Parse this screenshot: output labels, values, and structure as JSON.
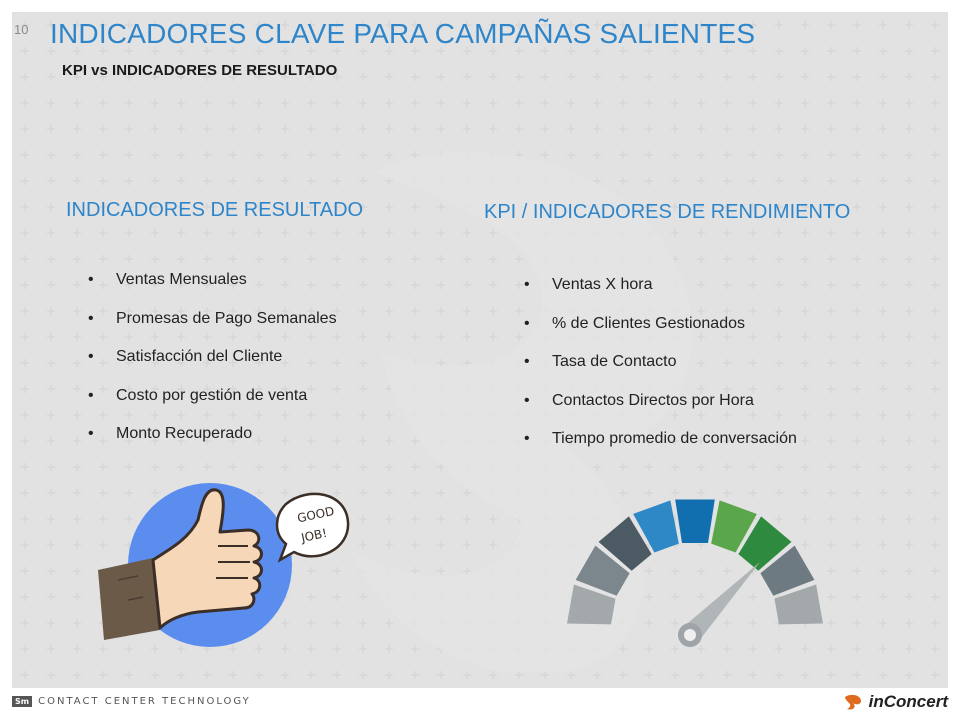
{
  "slide": {
    "page_number": "10",
    "title": "INDICADORES CLAVE PARA CAMPAÑAS SALIENTES",
    "subtitle": "KPI vs INDICADORES DE RESULTADO"
  },
  "left_column": {
    "heading": "INDICADORES DE RESULTADO",
    "items": [
      "Ventas Mensuales",
      "Promesas de Pago Semanales",
      "Satisfacción del Cliente",
      "Costo por gestión de venta",
      "Monto Recuperado"
    ]
  },
  "right_column": {
    "heading": "KPI / INDICADORES DE RENDIMIENTO",
    "items": [
      "Ventas X hora",
      "% de Clientes Gestionados",
      "Tasa de Contacto",
      "Contactos Directos por Hora",
      "Tiempo promedio de conversación"
    ]
  },
  "illustration": {
    "speech_line1": "GOOD",
    "speech_line2": "JOB!"
  },
  "footer": {
    "left_badge": "Sm",
    "left_text": "CONTACT CENTER TECHNOLOGY",
    "right_brand": "inConcert"
  },
  "colors": {
    "accent": "#2e85c9",
    "thumb_circle": "#5b8def",
    "gauge_segments": [
      "#a3a8ab",
      "#7b868d",
      "#4c5a64",
      "#2f88c6",
      "#116fb0",
      "#5aa64a",
      "#2d8a3e",
      "#6d7a82",
      "#a3a8ab"
    ]
  }
}
